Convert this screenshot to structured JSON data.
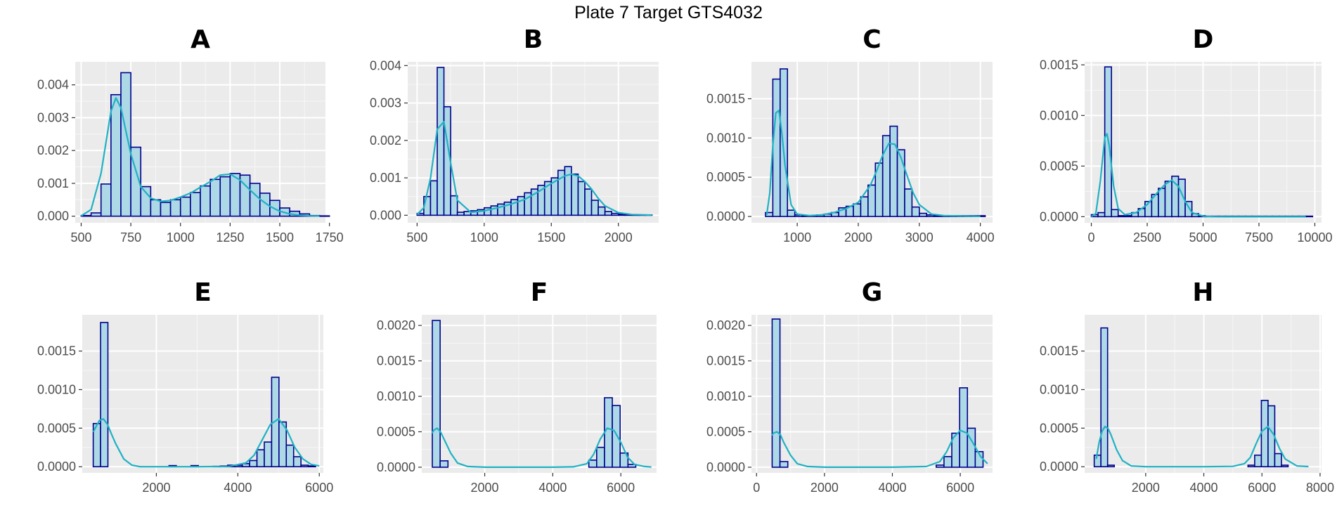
{
  "title": "Plate 7 Target GTS4032",
  "colors": {
    "panel_bg": "#ebebeb",
    "grid_major": "#ffffff",
    "bar_fill": "#add8e6",
    "bar_stroke": "#00008b",
    "density": "#1fb2c4",
    "tick_text": "#4d4d4d"
  },
  "chart_data": [
    {
      "panel": "A",
      "type": "bar",
      "subtype": "histogram+density",
      "bin_width": 50,
      "xlim": [
        470,
        1730
      ],
      "ylim": [
        -0.0002,
        0.0047
      ],
      "xticks": [
        500,
        750,
        1000,
        1250,
        1500,
        1750
      ],
      "xtick_labels": [
        "500",
        "750",
        "1000",
        "1250",
        "1500",
        "1750"
      ],
      "yticks": [
        0,
        0.001,
        0.002,
        0.003,
        0.004
      ],
      "ytick_labels": [
        "0.000",
        "0.001",
        "0.002",
        "0.003",
        "0.004"
      ],
      "bins_x": [
        525,
        575,
        625,
        675,
        725,
        775,
        825,
        875,
        925,
        975,
        1025,
        1075,
        1125,
        1175,
        1225,
        1275,
        1325,
        1375,
        1425,
        1475,
        1525,
        1575,
        1625,
        1675,
        1725
      ],
      "bins_y": [
        2e-05,
        0.0001,
        0.00098,
        0.0037,
        0.00437,
        0.0021,
        0.0009,
        0.0005,
        0.00042,
        0.0005,
        0.00058,
        0.00072,
        0.00092,
        0.00112,
        0.0012,
        0.0013,
        0.00125,
        0.001,
        0.0007,
        0.00048,
        0.00025,
        0.00015,
        7e-05,
        2e-05,
        1e-05
      ],
      "density_x": [
        500,
        550,
        600,
        650,
        675,
        700,
        750,
        800,
        850,
        900,
        950,
        1000,
        1050,
        1100,
        1150,
        1200,
        1250,
        1300,
        1350,
        1400,
        1450,
        1500,
        1550,
        1600,
        1650,
        1700
      ],
      "density_y": [
        1e-05,
        0.0002,
        0.0013,
        0.0032,
        0.0036,
        0.0033,
        0.0019,
        0.0009,
        0.00055,
        0.00045,
        0.00048,
        0.00058,
        0.0007,
        0.00088,
        0.00105,
        0.00125,
        0.00128,
        0.0011,
        0.0008,
        0.00052,
        0.0003,
        0.00015,
        7e-05,
        3e-05,
        1e-05,
        5e-06
      ]
    },
    {
      "panel": "B",
      "type": "bar",
      "subtype": "histogram+density",
      "bin_width": 50,
      "xlim": [
        430,
        2300
      ],
      "ylim": [
        -0.0002,
        0.0041
      ],
      "xticks": [
        500,
        1000,
        1500,
        2000
      ],
      "xtick_labels": [
        "500",
        "1000",
        "1500",
        "2000"
      ],
      "yticks": [
        0,
        0.001,
        0.002,
        0.003,
        0.004
      ],
      "ytick_labels": [
        "0.000",
        "0.001",
        "0.002",
        "0.003",
        "0.004"
      ],
      "bins_x": [
        525,
        575,
        625,
        675,
        725,
        775,
        825,
        875,
        925,
        975,
        1025,
        1075,
        1125,
        1175,
        1225,
        1275,
        1325,
        1375,
        1425,
        1475,
        1525,
        1575,
        1625,
        1675,
        1725,
        1775,
        1825,
        1875,
        1925,
        1975,
        2025,
        2075,
        2125,
        2175,
        2225
      ],
      "bins_y": [
        5e-05,
        0.0005,
        0.00092,
        0.00395,
        0.0029,
        0.00052,
        8e-05,
        0.0001,
        0.00012,
        0.00015,
        0.0002,
        0.00025,
        0.0003,
        0.00035,
        0.00042,
        0.0005,
        0.0006,
        0.0007,
        0.0008,
        0.0009,
        0.001,
        0.0012,
        0.0013,
        0.0011,
        0.0009,
        0.0007,
        0.0004,
        0.00022,
        0.0001,
        5e-05,
        3e-05,
        2e-05,
        1e-05,
        1e-05,
        1e-05
      ],
      "density_x": [
        500,
        550,
        600,
        650,
        700,
        750,
        800,
        900,
        1000,
        1100,
        1200,
        1300,
        1400,
        1500,
        1550,
        1600,
        1650,
        1700,
        1750,
        1800,
        1850,
        1900,
        2000,
        2100,
        2200,
        2250
      ],
      "density_y": [
        2e-05,
        0.0002,
        0.001,
        0.0023,
        0.0025,
        0.0014,
        0.0004,
        8e-05,
        0.00012,
        0.0002,
        0.0003,
        0.00042,
        0.00062,
        0.00085,
        0.00095,
        0.00105,
        0.0011,
        0.00105,
        0.0009,
        0.0007,
        0.00045,
        0.00025,
        7e-05,
        2e-05,
        1e-05,
        5e-06
      ]
    },
    {
      "panel": "C",
      "type": "bar",
      "subtype": "histogram+density",
      "bin_width": 120,
      "xlim": [
        250,
        4200
      ],
      "ylim": [
        -8e-05,
        0.00197
      ],
      "xticks": [
        1000,
        2000,
        3000,
        4000
      ],
      "xtick_labels": [
        "1000",
        "2000",
        "3000",
        "4000"
      ],
      "yticks": [
        0,
        0.0005,
        0.001,
        0.0015
      ],
      "ytick_labels": [
        "0.0000",
        "0.0005",
        "0.0010",
        "0.0015"
      ],
      "bins_x": [
        540,
        660,
        780,
        900,
        1020,
        1140,
        1260,
        1380,
        1500,
        1620,
        1740,
        1860,
        1980,
        2100,
        2220,
        2340,
        2460,
        2580,
        2700,
        2820,
        2940,
        3060,
        3180,
        3300,
        3420,
        3540,
        3660,
        3780,
        3900,
        4020
      ],
      "bins_y": [
        5e-05,
        0.00175,
        0.00188,
        8e-05,
        2e-05,
        1e-05,
        1e-05,
        2e-05,
        3e-05,
        5e-05,
        0.00011,
        0.00013,
        0.00016,
        0.00025,
        0.0004,
        0.00068,
        0.00103,
        0.00115,
        0.00085,
        0.00035,
        0.00012,
        4e-05,
        2e-05,
        1e-05,
        1e-05,
        1e-05,
        1e-05,
        1e-05,
        1e-05,
        1e-05
      ],
      "density_x": [
        500,
        550,
        600,
        650,
        700,
        750,
        800,
        900,
        1000,
        1200,
        1400,
        1600,
        1800,
        2000,
        2200,
        2300,
        2400,
        2500,
        2600,
        2700,
        2800,
        2900,
        3000,
        3200,
        3400,
        4000
      ],
      "density_y": [
        2e-05,
        0.0003,
        0.0009,
        0.00132,
        0.00135,
        0.00105,
        0.00065,
        0.00015,
        3e-05,
        1e-05,
        2e-05,
        5e-05,
        0.0001,
        0.00018,
        0.0004,
        0.00058,
        0.00078,
        0.00093,
        0.00092,
        0.00075,
        0.00052,
        0.0003,
        0.00015,
        3e-05,
        1e-05,
        2e-06
      ]
    },
    {
      "panel": "D",
      "type": "bar",
      "subtype": "histogram+density",
      "bin_width": 300,
      "xlim": [
        -300,
        10300
      ],
      "ylim": [
        -6e-05,
        0.00153
      ],
      "xticks": [
        0,
        2500,
        5000,
        7500,
        10000
      ],
      "xtick_labels": [
        "0",
        "2500",
        "5000",
        "7500",
        "10000"
      ],
      "yticks": [
        0,
        0.0005,
        0.001,
        0.0015
      ],
      "ytick_labels": [
        "0.0000",
        "0.0005",
        "0.0010",
        "0.0015"
      ],
      "bins_x": [
        150,
        450,
        750,
        1050,
        1350,
        1650,
        1950,
        2250,
        2550,
        2850,
        3150,
        3450,
        3750,
        4050,
        4350,
        4650,
        4950,
        5250,
        5550,
        5850,
        6150,
        6450,
        6750,
        7050,
        7350,
        7650,
        7950,
        8250,
        8550,
        8850,
        9150,
        9450,
        9750
      ],
      "bins_y": [
        2e-05,
        4e-05,
        0.00148,
        7e-05,
        1e-05,
        1e-05,
        4e-05,
        8e-05,
        0.00015,
        0.00022,
        0.00028,
        0.00035,
        0.0004,
        0.00037,
        0.00015,
        3e-05,
        1e-05,
        5e-06,
        5e-06,
        5e-06,
        5e-06,
        5e-06,
        5e-06,
        5e-06,
        5e-06,
        5e-06,
        5e-06,
        5e-06,
        5e-06,
        5e-06,
        5e-06,
        5e-06,
        5e-06
      ],
      "density_x": [
        0,
        200,
        400,
        600,
        700,
        800,
        1000,
        1200,
        1500,
        2000,
        2500,
        3000,
        3300,
        3600,
        3900,
        4200,
        4500,
        5000,
        5500,
        6000,
        7000,
        8000,
        9000,
        9600
      ],
      "density_y": [
        1e-06,
        3e-05,
        0.00035,
        0.00078,
        0.00082,
        0.0007,
        0.0003,
        8e-05,
        2e-05,
        4e-05,
        0.00012,
        0.00025,
        0.00032,
        0.00036,
        0.0003,
        0.00015,
        4e-05,
        5e-06,
        1e-06,
        0,
        0,
        0,
        0,
        0
      ]
    },
    {
      "panel": "E",
      "type": "bar",
      "subtype": "histogram+density",
      "bin_width": 180,
      "xlim": [
        180,
        6100
      ],
      "ylim": [
        -8e-05,
        0.00197
      ],
      "xticks": [
        2000,
        4000,
        6000
      ],
      "xtick_labels": [
        "2000",
        "4000",
        "6000"
      ],
      "yticks": [
        0,
        0.0005,
        0.001,
        0.0015
      ],
      "ytick_labels": [
        "0.0000",
        "0.0005",
        "0.0010",
        "0.0015"
      ],
      "bins_x": [
        540,
        720,
        2400,
        2940,
        3480,
        3660,
        3840,
        4020,
        4200,
        4380,
        4560,
        4740,
        4920,
        5100,
        5280,
        5460,
        5640,
        5820
      ],
      "bins_y": [
        0.00056,
        0.00187,
        1.5e-05,
        1.5e-05,
        5e-06,
        1e-05,
        2e-05,
        2e-05,
        4e-05,
        8e-05,
        0.00022,
        0.00032,
        0.00116,
        0.00058,
        0.00028,
        0.00013,
        2e-05,
        1e-05
      ],
      "density_x": [
        450,
        500,
        600,
        700,
        800,
        900,
        1000,
        1200,
        1400,
        1600,
        2000,
        3000,
        3800,
        4200,
        4400,
        4600,
        4800,
        5000,
        5200,
        5400,
        5600,
        5800,
        6000
      ],
      "density_y": [
        0.00045,
        0.0005,
        0.0006,
        0.00062,
        0.00055,
        0.00042,
        0.0003,
        0.0001,
        2e-05,
        0,
        0,
        0,
        5e-06,
        5e-05,
        0.00015,
        0.00035,
        0.00055,
        0.00062,
        0.00048,
        0.00025,
        0.0001,
        3e-05,
        1e-05
      ]
    },
    {
      "panel": "F",
      "type": "bar",
      "subtype": "histogram+density",
      "bin_width": 230,
      "xlim": [
        150,
        7050
      ],
      "ylim": [
        -8e-05,
        0.00215
      ],
      "xticks": [
        2000,
        4000,
        6000
      ],
      "xtick_labels": [
        "2000",
        "4000",
        "6000"
      ],
      "yticks": [
        0,
        0.0005,
        0.001,
        0.0015,
        0.002
      ],
      "ytick_labels": [
        "0.0000",
        "0.0005",
        "0.0010",
        "0.0015",
        "0.0020"
      ],
      "bins_x": [
        575,
        805,
        5175,
        5405,
        5635,
        5865,
        6095,
        6325
      ],
      "bins_y": [
        0.00207,
        9e-05,
        0.0001,
        0.00028,
        0.00098,
        0.00087,
        0.0002,
        4e-05
      ],
      "density_x": [
        450,
        500,
        600,
        700,
        800,
        1000,
        1200,
        1500,
        2000,
        3000,
        4000,
        4600,
        5000,
        5200,
        5400,
        5600,
        5800,
        6000,
        6200,
        6400,
        6700,
        6900
      ],
      "density_y": [
        0.00048,
        0.00052,
        0.00055,
        0.0005,
        0.0004,
        0.0002,
        6e-05,
        1e-05,
        0,
        0,
        0,
        5e-06,
        5e-05,
        0.00018,
        0.0004,
        0.00055,
        0.00052,
        0.00035,
        0.00014,
        4e-05,
        1e-05,
        2e-06
      ]
    },
    {
      "panel": "G",
      "type": "bar",
      "subtype": "histogram+density",
      "bin_width": 230,
      "xlim": [
        -150,
        6950
      ],
      "ylim": [
        -8e-05,
        0.00215
      ],
      "xticks": [
        0,
        2000,
        4000,
        6000
      ],
      "xtick_labels": [
        "0",
        "2000",
        "4000",
        "6000"
      ],
      "yticks": [
        0,
        0.0005,
        0.001,
        0.0015,
        0.002
      ],
      "ytick_labels": [
        "0.0000",
        "0.0005",
        "0.0010",
        "0.0015",
        "0.0020"
      ],
      "bins_x": [
        575,
        805,
        5405,
        5635,
        5865,
        6095,
        6325,
        6555
      ],
      "bins_y": [
        0.00209,
        8e-05,
        3e-05,
        0.00015,
        0.00048,
        0.00112,
        0.00055,
        0.00022
      ],
      "density_x": [
        450,
        500,
        600,
        700,
        800,
        1000,
        1200,
        1500,
        2000,
        3000,
        4000,
        5000,
        5400,
        5600,
        5800,
        6000,
        6200,
        6400,
        6600,
        6800
      ],
      "density_y": [
        0.00045,
        0.00048,
        0.0005,
        0.00046,
        0.00035,
        0.00017,
        5e-05,
        1e-05,
        0,
        0,
        0,
        1e-05,
        8e-05,
        0.00022,
        0.00042,
        0.00052,
        0.00048,
        0.00032,
        0.00015,
        5e-05
      ]
    },
    {
      "panel": "H",
      "type": "bar",
      "subtype": "histogram+density",
      "bin_width": 230,
      "xlim": [
        -100,
        8050
      ],
      "ylim": [
        -8e-05,
        0.00197
      ],
      "xticks": [
        2000,
        4000,
        6000,
        8000
      ],
      "xtick_labels": [
        "2000",
        "4000",
        "6000",
        "8000"
      ],
      "yticks": [
        0,
        0.0005,
        0.001,
        0.0015
      ],
      "ytick_labels": [
        "0.0000",
        "0.0005",
        "0.0010",
        "0.0015"
      ],
      "bins_x": [
        345,
        575,
        805,
        5635,
        5865,
        6095,
        6325,
        6555,
        6785
      ],
      "bins_y": [
        0.00015,
        0.0018,
        2e-05,
        2e-05,
        0.00015,
        0.00086,
        0.00079,
        0.00017,
        2e-05
      ],
      "density_x": [
        300,
        400,
        500,
        600,
        700,
        800,
        1000,
        1200,
        1500,
        2000,
        3000,
        4000,
        5000,
        5400,
        5600,
        5800,
        6000,
        6200,
        6400,
        6600,
        6800,
        7200,
        7600
      ],
      "density_y": [
        0.0001,
        0.00032,
        0.00046,
        0.00052,
        0.0005,
        0.00042,
        0.00022,
        8e-05,
        1e-05,
        0,
        0,
        0,
        5e-06,
        4e-05,
        0.00012,
        0.0003,
        0.00046,
        0.00052,
        0.00042,
        0.00024,
        0.0001,
        1e-05,
        2e-06
      ]
    }
  ]
}
